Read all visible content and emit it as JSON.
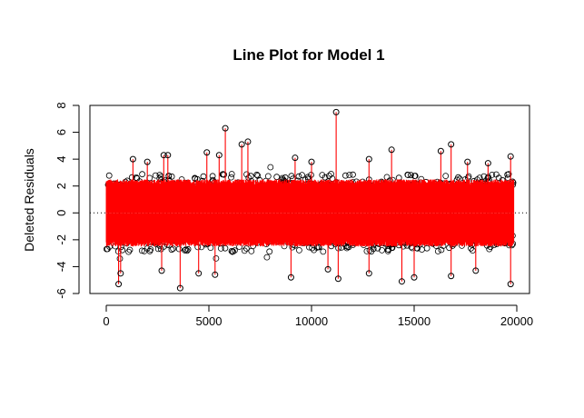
{
  "chart_data": {
    "type": "line",
    "title": "Line Plot for Model 1",
    "xlabel": "",
    "ylabel": "Deleted Residuals",
    "xlim": [
      0,
      20000
    ],
    "ylim": [
      -6,
      8
    ],
    "x_ticks": [
      0,
      5000,
      10000,
      15000,
      20000
    ],
    "y_ticks": [
      -6,
      -4,
      -2,
      0,
      2,
      4,
      6,
      8
    ],
    "x_tick_labels": [
      "0",
      "5000",
      "10000",
      "15000",
      "20000"
    ],
    "y_tick_labels": [
      "-6",
      "-4",
      "-2",
      "0",
      "2",
      "4",
      "6",
      "8"
    ],
    "reference_line": {
      "y": 0,
      "style": "dotted"
    },
    "grid": false,
    "legend": "none",
    "series": [
      {
        "style": "h-lines with open circle markers",
        "n_points": 19850,
        "x_range": [
          1,
          19850
        ],
        "typical_range": [
          -2.5,
          2.5
        ],
        "extreme_points": [
          {
            "x": 11200,
            "y": 7.5
          },
          {
            "x": 5800,
            "y": 6.3
          },
          {
            "x": 6900,
            "y": 5.3
          },
          {
            "x": 16800,
            "y": 5.1
          },
          {
            "x": 6600,
            "y": 5.1
          },
          {
            "x": 13900,
            "y": 4.7
          },
          {
            "x": 16300,
            "y": 4.6
          },
          {
            "x": 4900,
            "y": 4.5
          },
          {
            "x": 2800,
            "y": 4.3
          },
          {
            "x": 5500,
            "y": 4.3
          },
          {
            "x": 3000,
            "y": 4.3
          },
          {
            "x": 19700,
            "y": 4.2
          },
          {
            "x": 9200,
            "y": 4.1
          },
          {
            "x": 1300,
            "y": 4.0
          },
          {
            "x": 12800,
            "y": 4.0
          },
          {
            "x": 2000,
            "y": 3.8
          },
          {
            "x": 10000,
            "y": 3.8
          },
          {
            "x": 17600,
            "y": 3.8
          },
          {
            "x": 18600,
            "y": 3.7
          },
          {
            "x": 3600,
            "y": -5.6
          },
          {
            "x": 19700,
            "y": -5.3
          },
          {
            "x": 600,
            "y": -5.3
          },
          {
            "x": 14400,
            "y": -5.1
          },
          {
            "x": 11300,
            "y": -4.9
          },
          {
            "x": 9000,
            "y": -4.8
          },
          {
            "x": 15000,
            "y": -4.8
          },
          {
            "x": 16800,
            "y": -4.7
          },
          {
            "x": 5300,
            "y": -4.6
          },
          {
            "x": 700,
            "y": -4.5
          },
          {
            "x": 12800,
            "y": -4.5
          },
          {
            "x": 4500,
            "y": -4.5
          },
          {
            "x": 18000,
            "y": -4.3
          },
          {
            "x": 2700,
            "y": -4.3
          },
          {
            "x": 10800,
            "y": -4.2
          }
        ]
      }
    ],
    "colors": {
      "lines": "#ff0000",
      "markers": "#000000",
      "reference_line": "#000000"
    }
  }
}
